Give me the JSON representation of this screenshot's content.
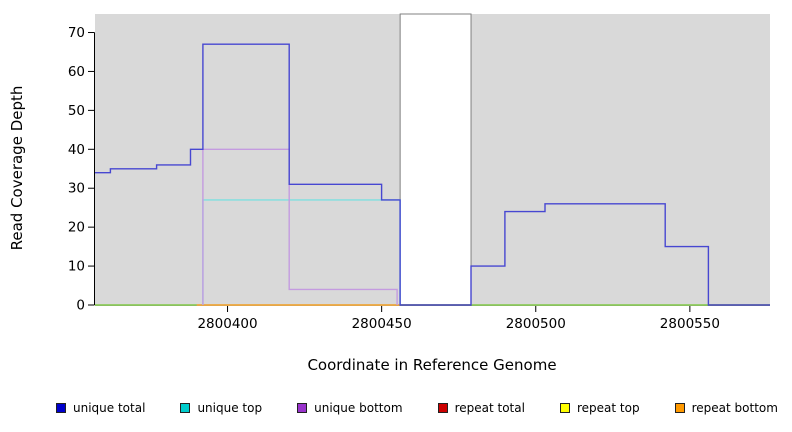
{
  "chart_data": {
    "type": "line",
    "step": true,
    "title": "",
    "xlabel": "Coordinate in Reference Genome",
    "ylabel": "Read Coverage Depth",
    "x_domain": [
      2800357,
      2800576
    ],
    "y_view_max": 74.5,
    "x_ticks": [
      2800400,
      2800450,
      2800500,
      2800550
    ],
    "y_ticks": [
      0,
      10,
      20,
      30,
      40,
      50,
      60,
      70
    ],
    "plot_background": "#d9d9d9",
    "gap_region": {
      "from": 2800456,
      "to": 2800479
    },
    "gap_border_color": "#808080",
    "series": [
      {
        "name": "repeat total",
        "color": "#cc0000",
        "points": [
          [
            2800357,
            0
          ],
          [
            2800576,
            0
          ]
        ]
      },
      {
        "name": "repeat top",
        "color": "#eeee00",
        "points": [
          [
            2800357,
            0
          ],
          [
            2800576,
            0
          ]
        ]
      },
      {
        "name": "zero baseline",
        "color": "#7fd87f",
        "points": [
          [
            2800357,
            0
          ],
          [
            2800576,
            0
          ]
        ]
      },
      {
        "name": "repeat bottom",
        "color": "#ffa64d",
        "points": [
          [
            2800390,
            0
          ],
          [
            2800456,
            0
          ]
        ]
      },
      {
        "name": "unique top",
        "color": "#7fe0e0",
        "points": [
          [
            2800392,
            0
          ],
          [
            2800392,
            27
          ],
          [
            2800456,
            27
          ],
          [
            2800456,
            0
          ]
        ]
      },
      {
        "name": "unique bottom",
        "color": "#c49be0",
        "points": [
          [
            2800392,
            0
          ],
          [
            2800392,
            40
          ],
          [
            2800420,
            40
          ],
          [
            2800420,
            4
          ],
          [
            2800455,
            4
          ],
          [
            2800455,
            0
          ]
        ]
      },
      {
        "name": "unique total",
        "color": "#4747d1",
        "points": [
          [
            2800357,
            34
          ],
          [
            2800362,
            34
          ],
          [
            2800362,
            35
          ],
          [
            2800377,
            35
          ],
          [
            2800377,
            36
          ],
          [
            2800388,
            36
          ],
          [
            2800388,
            40
          ],
          [
            2800392,
            40
          ],
          [
            2800392,
            67
          ],
          [
            2800420,
            67
          ],
          [
            2800420,
            31
          ],
          [
            2800450,
            31
          ],
          [
            2800450,
            27
          ],
          [
            2800456,
            27
          ],
          [
            2800456,
            0
          ],
          [
            2800479,
            0
          ],
          [
            2800479,
            10
          ],
          [
            2800490,
            10
          ],
          [
            2800490,
            24
          ],
          [
            2800503,
            24
          ],
          [
            2800503,
            26
          ],
          [
            2800542,
            26
          ],
          [
            2800542,
            15
          ],
          [
            2800556,
            15
          ],
          [
            2800556,
            0
          ],
          [
            2800576,
            0
          ]
        ]
      }
    ]
  },
  "legend": {
    "items": [
      {
        "label": "unique total",
        "color": "#0000cc"
      },
      {
        "label": "unique top",
        "color": "#00cccc"
      },
      {
        "label": "unique bottom",
        "color": "#9933cc"
      },
      {
        "label": "repeat total",
        "color": "#cc0000"
      },
      {
        "label": "repeat top",
        "color": "#ffff00"
      },
      {
        "label": "repeat bottom",
        "color": "#ff9900"
      }
    ]
  }
}
